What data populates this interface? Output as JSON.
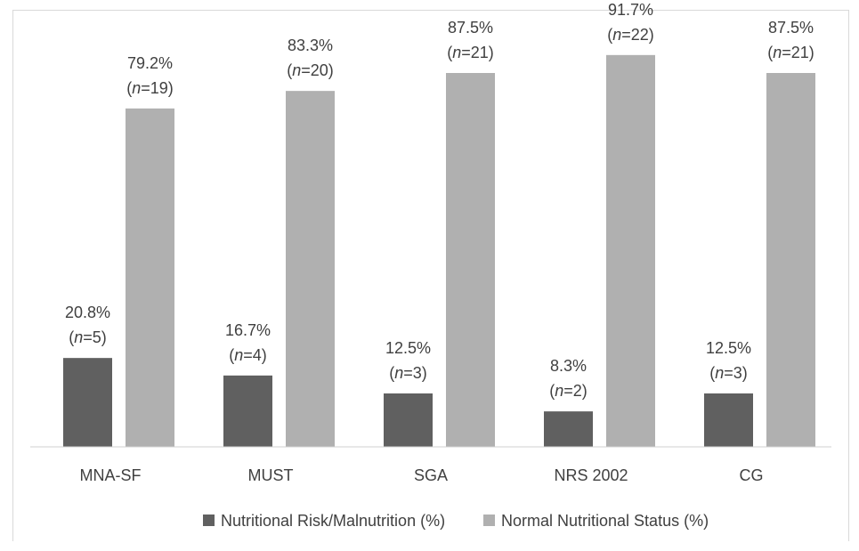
{
  "chart_data": {
    "type": "bar",
    "title": "",
    "xlabel": "",
    "ylabel": "",
    "ylim": [
      0,
      100
    ],
    "grid": false,
    "legend_position": "bottom",
    "categories": [
      "MNA-SF",
      "MUST",
      "SGA",
      "NRS 2002",
      "CG"
    ],
    "series": [
      {
        "name": "Nutritional Risk/Malnutrition (%)",
        "color": "#606060",
        "values": [
          20.8,
          16.7,
          12.5,
          8.3,
          12.5
        ],
        "pct_labels": [
          "20.8%",
          "16.7%",
          "12.5%",
          "8.3%",
          "12.5%"
        ],
        "n_values": [
          "5",
          "4",
          "3",
          "2",
          "3"
        ]
      },
      {
        "name": "Normal Nutritional Status (%)",
        "color": "#b0b0b0",
        "values": [
          79.2,
          83.3,
          87.5,
          91.7,
          87.5
        ],
        "pct_labels": [
          "79.2%",
          "83.3%",
          "87.5%",
          "91.7%",
          "87.5%"
        ],
        "n_values": [
          "19",
          "20",
          "21",
          "22",
          "21"
        ]
      }
    ]
  }
}
